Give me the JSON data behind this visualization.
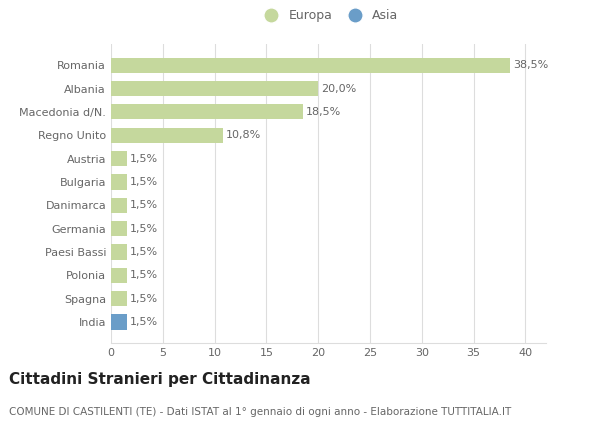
{
  "countries": [
    "Romania",
    "Albania",
    "Macedonia d/N.",
    "Regno Unito",
    "Austria",
    "Bulgaria",
    "Danimarca",
    "Germania",
    "Paesi Bassi",
    "Polonia",
    "Spagna",
    "India"
  ],
  "values": [
    38.5,
    20.0,
    18.5,
    10.8,
    1.5,
    1.5,
    1.5,
    1.5,
    1.5,
    1.5,
    1.5,
    1.5
  ],
  "labels": [
    "38,5%",
    "20,0%",
    "18,5%",
    "10,8%",
    "1,5%",
    "1,5%",
    "1,5%",
    "1,5%",
    "1,5%",
    "1,5%",
    "1,5%",
    "1,5%"
  ],
  "continents": [
    "Europa",
    "Europa",
    "Europa",
    "Europa",
    "Europa",
    "Europa",
    "Europa",
    "Europa",
    "Europa",
    "Europa",
    "Europa",
    "Asia"
  ],
  "color_europa": "#c5d89d",
  "color_asia": "#6a9dc8",
  "legend_europa": "Europa",
  "legend_asia": "Asia",
  "xlim": [
    0,
    42
  ],
  "xticks": [
    0,
    5,
    10,
    15,
    20,
    25,
    30,
    35,
    40
  ],
  "title": "Cittadini Stranieri per Cittadinanza",
  "subtitle": "COMUNE DI CASTILENTI (TE) - Dati ISTAT al 1° gennaio di ogni anno - Elaborazione TUTTITALIA.IT",
  "bg_color": "#ffffff",
  "grid_color": "#dddddd",
  "bar_height": 0.65,
  "title_fontsize": 11,
  "subtitle_fontsize": 7.5,
  "label_fontsize": 8,
  "tick_fontsize": 8,
  "legend_fontsize": 9,
  "text_color": "#666666",
  "title_color": "#222222"
}
